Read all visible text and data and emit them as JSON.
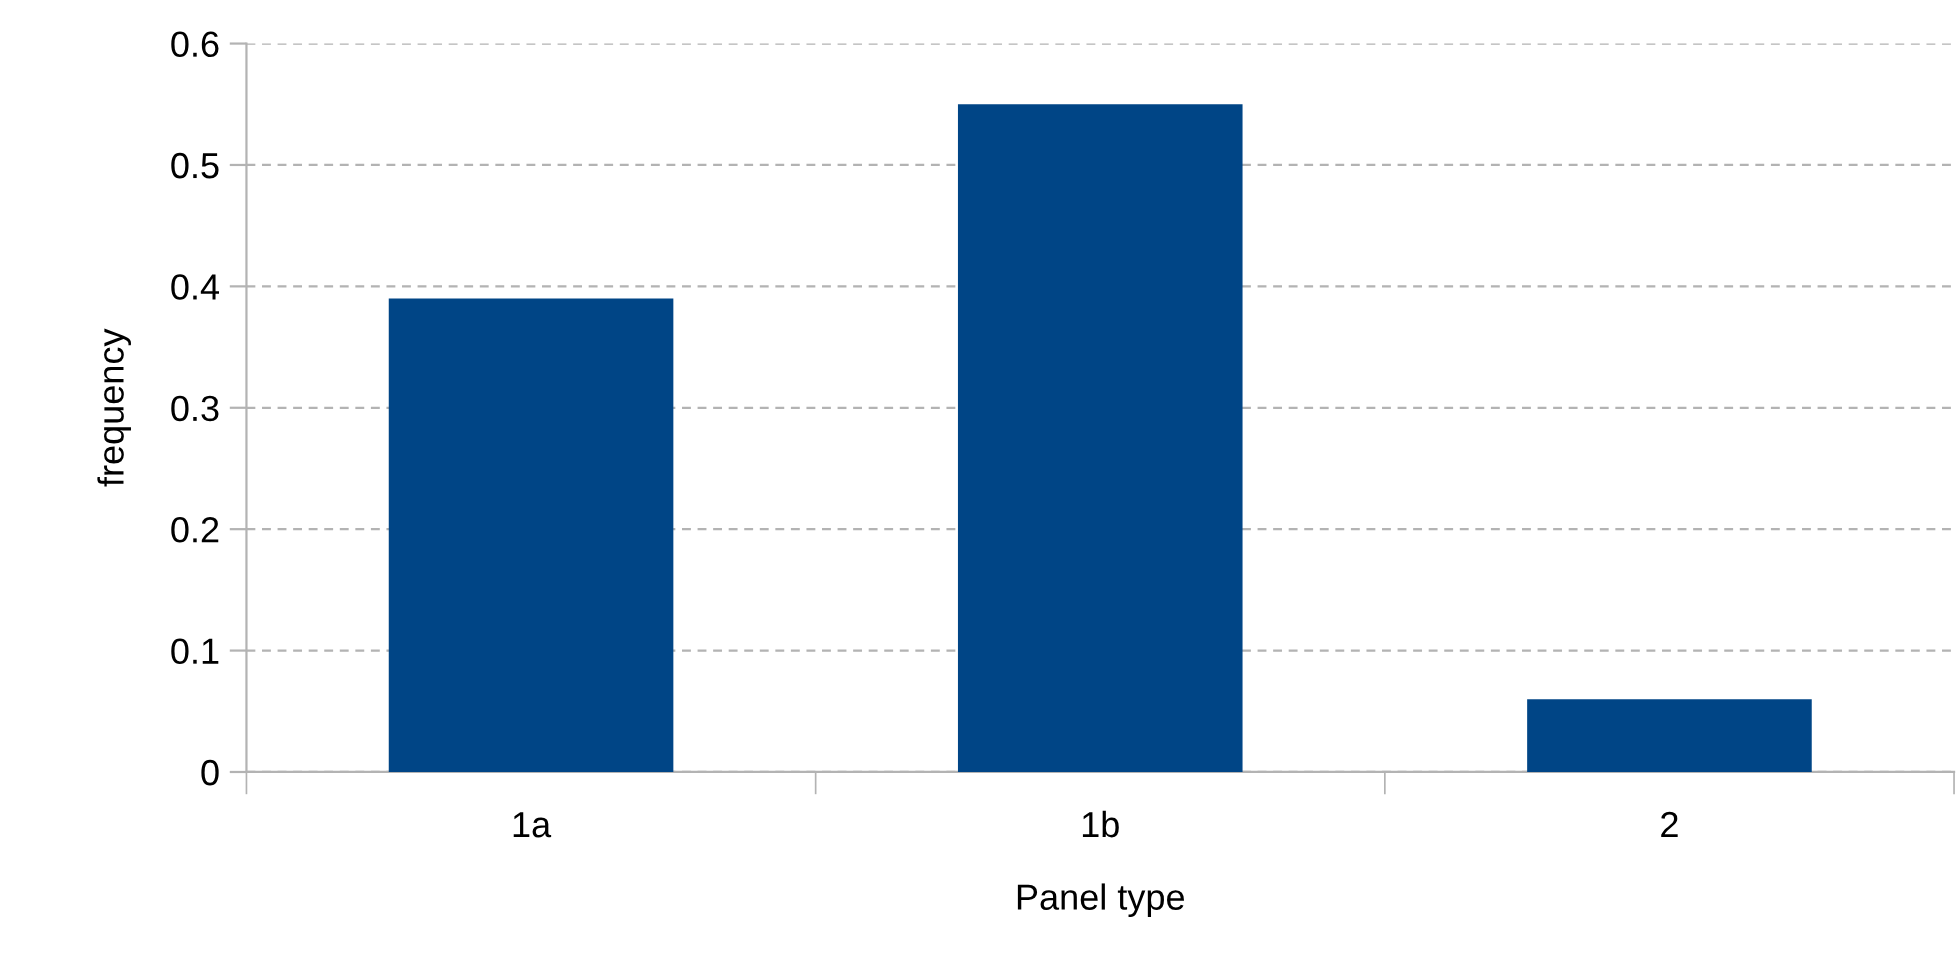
{
  "chart_data": {
    "type": "bar",
    "xlabel": "Panel type",
    "ylabel": "frequency",
    "categories": [
      "1a",
      "1b",
      "2"
    ],
    "values": [
      0.39,
      0.55,
      0.06
    ],
    "color": "#004586",
    "ylim": [
      0,
      0.6
    ],
    "yticks": [
      0,
      0.1,
      0.2,
      0.3,
      0.4,
      0.5,
      0.6
    ],
    "grid": "y"
  }
}
